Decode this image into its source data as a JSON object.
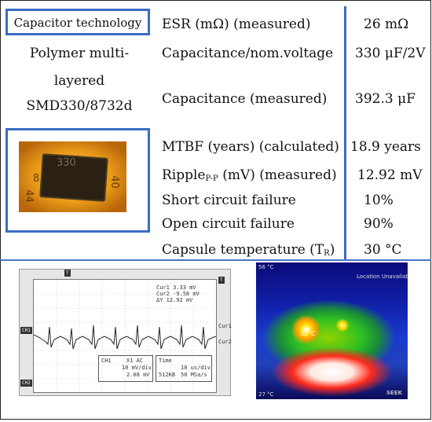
{
  "capacitor_header": "Capacitor technology",
  "capacitor_name_lines": [
    "Polymer multi-",
    "layered",
    "SMD330/8732d"
  ],
  "rows": [
    {
      "label": "ESR (mΩ) (measured)",
      "value": "26 mΩ"
    },
    {
      "label": "Capacitance/nom.voltage",
      "value": "330 μF/2V"
    },
    {
      "label": "Capacitance (measured)",
      "value": "392.3 μF"
    },
    {
      "label": "MTBF (years) (calculated)",
      "value": "18.9 years"
    },
    {
      "label_main": "Ripple",
      "label_sub": "P-P",
      "label_tail": " (mV) (measured)",
      "value": "12.92 mV"
    },
    {
      "label": "Short circuit failure",
      "value": "10%"
    },
    {
      "label": "Open circuit failure",
      "value": "90%"
    },
    {
      "label_main": "Capsule temperature (T",
      "label_sub": "R",
      "label_tail": ")",
      "value": "30 °C"
    }
  ],
  "photo_markings": [
    "330",
    "40",
    "44",
    "8"
  ],
  "oscilloscope": {
    "cursor_readout": [
      "Cur1 3.33 mV",
      "Cur2 -9.58 mV",
      "ΔY 12.92 mV"
    ],
    "ch1_label": "CH1",
    "ch2_label": "CH2",
    "cur1_tag": "Cur1",
    "cur2_tag": "Cur2",
    "trigger_marker": "T",
    "ch_settings": [
      "CH1",
      "X1 AC",
      "10 mV/div",
      "2.08 mV"
    ],
    "time_settings": [
      "Time",
      "10 us/div",
      "512KB",
      "50 MSa/s"
    ]
  },
  "thermal": {
    "spot_label": "30°C",
    "top_left": "56 °C",
    "top_right": "Location Unavailable",
    "bottom_left": "27 °C",
    "bottom_right": "SEEK"
  },
  "colors": {
    "accent_blue": "#3a6cc4"
  }
}
